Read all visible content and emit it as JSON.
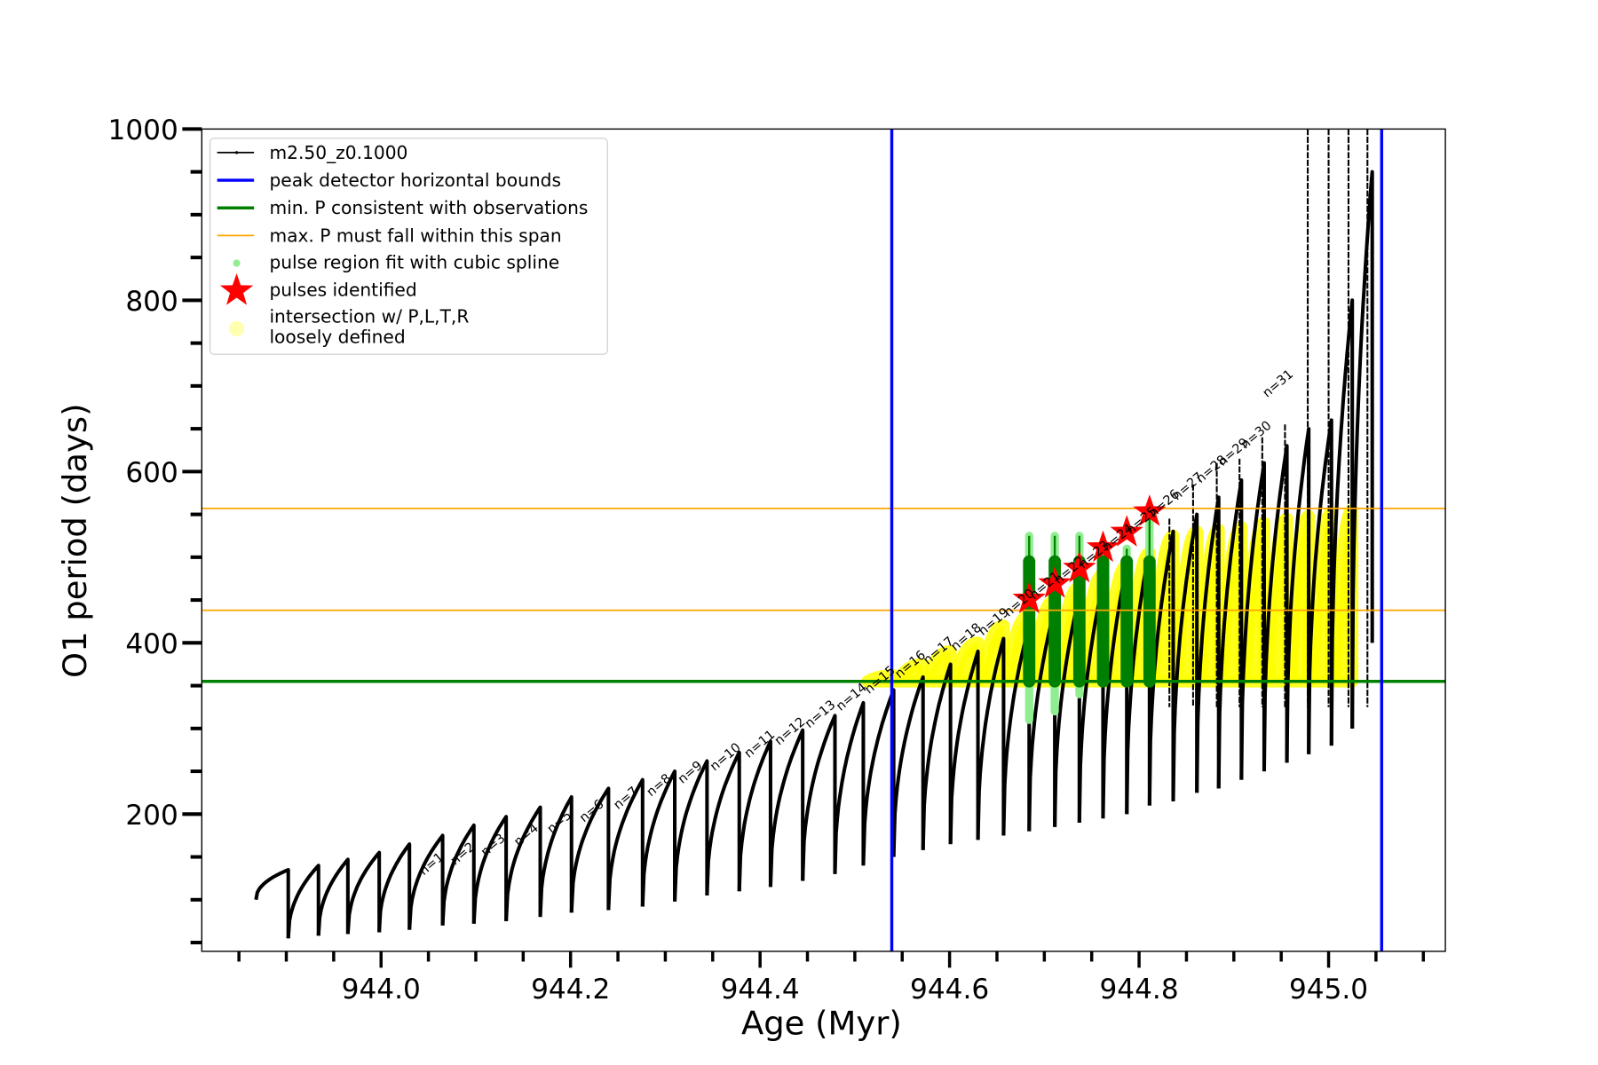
{
  "chart_data": {
    "type": "line",
    "title": "",
    "xlabel": "Age (Myr)",
    "ylabel": "O1 period (days)",
    "xlim": [
      943.811,
      945.123
    ],
    "ylim": [
      40,
      1000
    ],
    "x_ticks": [
      944.0,
      944.2,
      944.4,
      944.6,
      944.8,
      945.0
    ],
    "x_tick_labels": [
      "944.0",
      "944.2",
      "944.4",
      "944.6",
      "944.8",
      "945.0"
    ],
    "y_ticks": [
      200,
      400,
      600,
      800,
      1000
    ],
    "y_tick_labels": [
      "200",
      "400",
      "600",
      "800",
      "1000"
    ],
    "grid": false,
    "legend_placement": "top-left",
    "legend": [
      {
        "label": "m2.50_z0.1000",
        "kind": "line-marker",
        "color": "#000000"
      },
      {
        "label": "peak detector horizontal bounds",
        "kind": "line",
        "color": "#0000ff"
      },
      {
        "label": "min. P consistent with observations",
        "kind": "line",
        "color": "#008000"
      },
      {
        "label": "max. P must fall within this span",
        "kind": "thin-line",
        "color": "#ffa500"
      },
      {
        "label": "pulse region fit with cubic spline",
        "kind": "dot",
        "color": "#90ee90"
      },
      {
        "label": "pulses identified",
        "kind": "star",
        "color": "#ff0000"
      },
      {
        "label": "intersection w/ P,L,T,R",
        "label2": "loosely defined",
        "kind": "circle",
        "color": "#ffffb0"
      }
    ],
    "series": {
      "name": "m2.50_z0.1000",
      "start_age": 943.868,
      "start_period": 100,
      "pulse_ages": [
        943.902,
        943.934,
        943.965,
        943.998,
        944.03,
        944.065,
        944.098,
        944.132,
        944.168,
        944.201,
        944.24,
        944.276,
        944.31,
        944.344,
        944.378,
        944.411,
        944.445,
        944.479,
        944.509,
        944.541,
        944.572,
        944.601,
        944.63,
        944.657,
        944.684,
        944.711,
        944.737,
        944.762,
        944.787,
        944.811,
        944.836,
        944.861,
        944.884,
        944.908,
        944.932,
        944.956,
        944.979,
        945.003,
        945.025,
        945.046
      ],
      "peak_periods": [
        135,
        140,
        147,
        155,
        165,
        175,
        187,
        197,
        208,
        220,
        230,
        240,
        250,
        262,
        272,
        285,
        298,
        315,
        330,
        345,
        360,
        375,
        390,
        405,
        420,
        440,
        455,
        470,
        490,
        510,
        530,
        550,
        570,
        590,
        610,
        630,
        650,
        660,
        800,
        950
      ],
      "trough_periods": [
        55,
        58,
        60,
        62,
        65,
        70,
        72,
        75,
        80,
        85,
        88,
        92,
        98,
        105,
        110,
        115,
        122,
        130,
        140,
        150,
        158,
        165,
        170,
        175,
        180,
        185,
        190,
        195,
        200,
        210,
        215,
        225,
        230,
        240,
        250,
        260,
        270,
        280,
        300,
        400
      ],
      "spikes": [
        {
          "age": 944.832,
          "top": 545
        },
        {
          "age": 944.857,
          "top": 585
        },
        {
          "age": 944.882,
          "top": 610
        },
        {
          "age": 944.906,
          "top": 615
        },
        {
          "age": 944.93,
          "top": 640
        },
        {
          "age": 944.954,
          "top": 655
        },
        {
          "age": 944.978,
          "top": 1000
        },
        {
          "age": 945.0,
          "top": 1000
        },
        {
          "age": 945.021,
          "top": 1000
        },
        {
          "age": 945.041,
          "top": 1000
        }
      ]
    },
    "vertical_bounds": [
      944.539,
      945.056
    ],
    "min_period_line": 355,
    "max_period_span": [
      438,
      557
    ],
    "pulse_labels": [
      {
        "text": "n=1",
        "age": 944.045,
        "period": 128
      },
      {
        "text": "n=2",
        "age": 944.078,
        "period": 140
      },
      {
        "text": "n=3",
        "age": 944.11,
        "period": 150
      },
      {
        "text": "n=4",
        "age": 944.145,
        "period": 162
      },
      {
        "text": "n=5",
        "age": 944.18,
        "period": 177
      },
      {
        "text": "n=6",
        "age": 944.214,
        "period": 190
      },
      {
        "text": "n=7",
        "age": 944.25,
        "period": 205
      },
      {
        "text": "n=8",
        "age": 944.285,
        "period": 220
      },
      {
        "text": "n=9",
        "age": 944.318,
        "period": 235
      },
      {
        "text": "n=10",
        "age": 944.352,
        "period": 250
      },
      {
        "text": "n=11",
        "age": 944.388,
        "period": 265
      },
      {
        "text": "n=12",
        "age": 944.42,
        "period": 280
      },
      {
        "text": "n=13",
        "age": 944.452,
        "period": 300
      },
      {
        "text": "n=14",
        "age": 944.485,
        "period": 320
      },
      {
        "text": "n=15",
        "age": 944.515,
        "period": 340
      },
      {
        "text": "n=16",
        "age": 944.547,
        "period": 358
      },
      {
        "text": "n=17",
        "age": 944.577,
        "period": 374
      },
      {
        "text": "n=18",
        "age": 944.606,
        "period": 390
      },
      {
        "text": "n=19",
        "age": 944.635,
        "period": 408
      },
      {
        "text": "n=20",
        "age": 944.662,
        "period": 430
      },
      {
        "text": "n=21",
        "age": 944.689,
        "period": 450
      },
      {
        "text": "n=22",
        "age": 944.715,
        "period": 468
      },
      {
        "text": "n=23",
        "age": 944.741,
        "period": 486
      },
      {
        "text": "n=24",
        "age": 944.766,
        "period": 506
      },
      {
        "text": "n=25",
        "age": 944.791,
        "period": 526
      },
      {
        "text": "n=26",
        "age": 944.815,
        "period": 546
      },
      {
        "text": "n=27",
        "age": 944.84,
        "period": 566
      },
      {
        "text": "n=28",
        "age": 944.865,
        "period": 586
      },
      {
        "text": "n=29",
        "age": 944.888,
        "period": 606
      },
      {
        "text": "n=30",
        "age": 944.912,
        "period": 626
      },
      {
        "text": "n=31",
        "age": 944.935,
        "period": 686
      }
    ],
    "pulses_identified": [
      {
        "age": 944.684,
        "period": 451
      },
      {
        "age": 944.711,
        "period": 469
      },
      {
        "age": 944.737,
        "period": 487
      },
      {
        "age": 944.762,
        "period": 511
      },
      {
        "age": 944.787,
        "period": 529
      },
      {
        "age": 944.811,
        "period": 553
      }
    ],
    "spline_regions": [
      {
        "age": 944.684,
        "low": 310,
        "high": 525,
        "core_low": 355,
        "core_high": 495
      },
      {
        "age": 944.711,
        "low": 320,
        "high": 525,
        "core_low": 355,
        "core_high": 495
      },
      {
        "age": 944.737,
        "low": 340,
        "high": 525,
        "core_low": 355,
        "core_high": 495
      },
      {
        "age": 944.762,
        "low": 355,
        "high": 500,
        "core_low": 355,
        "core_high": 495
      },
      {
        "age": 944.787,
        "low": 355,
        "high": 510,
        "core_low": 355,
        "core_high": 495
      },
      {
        "age": 944.811,
        "low": 355,
        "high": 545,
        "core_low": 355,
        "core_high": 495
      }
    ],
    "intersection_tops": [
      362,
      375,
      390,
      400,
      420,
      432,
      450,
      465,
      480,
      490,
      505,
      525,
      530,
      532,
      535,
      540,
      545,
      548,
      552,
      555
    ]
  }
}
